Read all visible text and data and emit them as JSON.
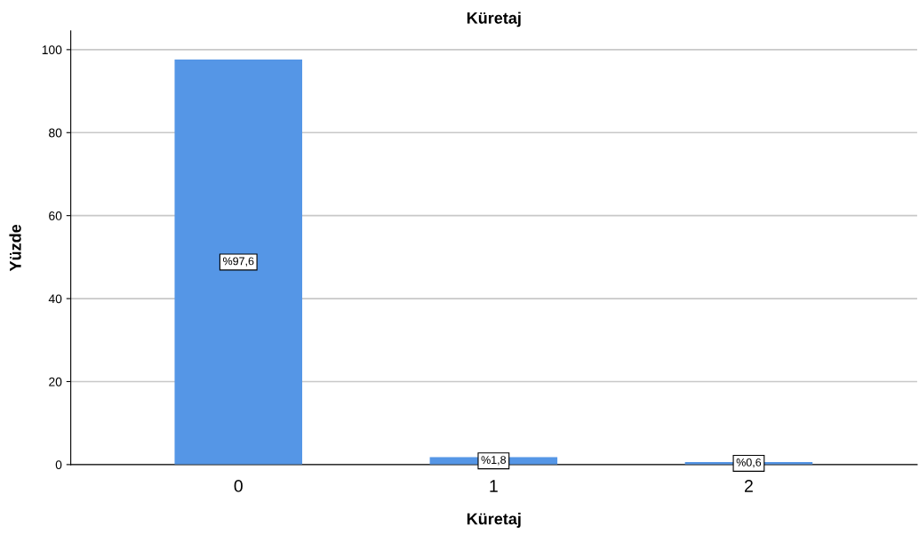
{
  "chart_data": {
    "type": "bar",
    "title": "Küretaj",
    "xlabel": "Küretaj",
    "ylabel": "Yüzde",
    "categories": [
      "0",
      "1",
      "2"
    ],
    "values": [
      97.6,
      1.8,
      0.6
    ],
    "value_labels": [
      "%97,6",
      "%1,8",
      "%0,6"
    ],
    "color": "#5596e6",
    "ylim": [
      0,
      104.5
    ],
    "yticks": [
      0,
      20,
      40,
      60,
      80,
      100
    ],
    "grid": "y"
  }
}
